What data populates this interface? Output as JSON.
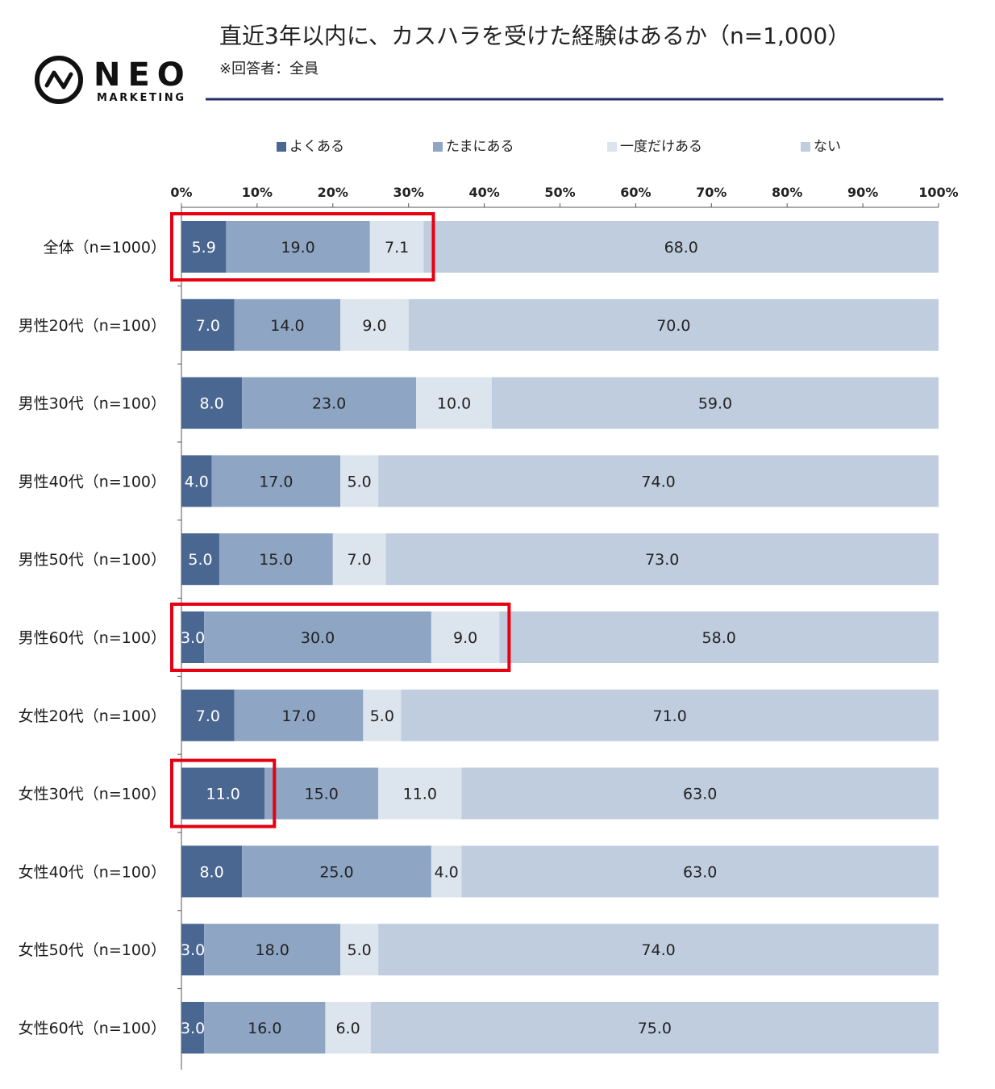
{
  "brand": {
    "name": "NEO",
    "sub": "MARKETING"
  },
  "header": {
    "title": "直近3年以内に、カスハラを受けた経験はあるか（n=1,000）",
    "subtitle": "※回答者：全員"
  },
  "colors": {
    "accent_line": "#1f2f6b",
    "highlight": "#e60012",
    "series": [
      "#4a6792",
      "#8ea5c4",
      "#dce4ee",
      "#bfcddf"
    ],
    "label_dark": "#ffffff",
    "label_light": "#222222"
  },
  "chart_data": {
    "type": "bar",
    "orientation": "horizontal",
    "stacked": true,
    "xlim": [
      0,
      100
    ],
    "x_ticks": [
      "0%",
      "10%",
      "20%",
      "30%",
      "40%",
      "50%",
      "60%",
      "70%",
      "80%",
      "90%",
      "100%"
    ],
    "legend_position": "top",
    "categories": [
      "全体（n=1000）",
      "男性20代（n=100）",
      "男性30代（n=100）",
      "男性40代（n=100）",
      "男性50代（n=100）",
      "男性60代（n=100）",
      "女性20代（n=100）",
      "女性30代（n=100）",
      "女性40代（n=100）",
      "女性50代（n=100）",
      "女性60代（n=100）"
    ],
    "series": [
      {
        "name": "よくある",
        "values": [
          5.9,
          7.0,
          8.0,
          4.0,
          5.0,
          3.0,
          7.0,
          11.0,
          8.0,
          3.0,
          3.0
        ]
      },
      {
        "name": "たまにある",
        "values": [
          19.0,
          14.0,
          23.0,
          17.0,
          15.0,
          30.0,
          17.0,
          15.0,
          25.0,
          18.0,
          16.0
        ]
      },
      {
        "name": "一度だけある",
        "values": [
          7.1,
          9.0,
          10.0,
          5.0,
          7.0,
          9.0,
          5.0,
          11.0,
          4.0,
          5.0,
          6.0
        ]
      },
      {
        "name": "ない",
        "values": [
          68.0,
          70.0,
          59.0,
          74.0,
          73.0,
          58.0,
          71.0,
          63.0,
          63.0,
          74.0,
          75.0
        ]
      }
    ],
    "highlights": [
      {
        "category_index": 0,
        "series_from": 0,
        "series_to": 2
      },
      {
        "category_index": 5,
        "series_from": 0,
        "series_to": 2
      },
      {
        "category_index": 7,
        "series_from": 0,
        "series_to": 0
      }
    ]
  }
}
